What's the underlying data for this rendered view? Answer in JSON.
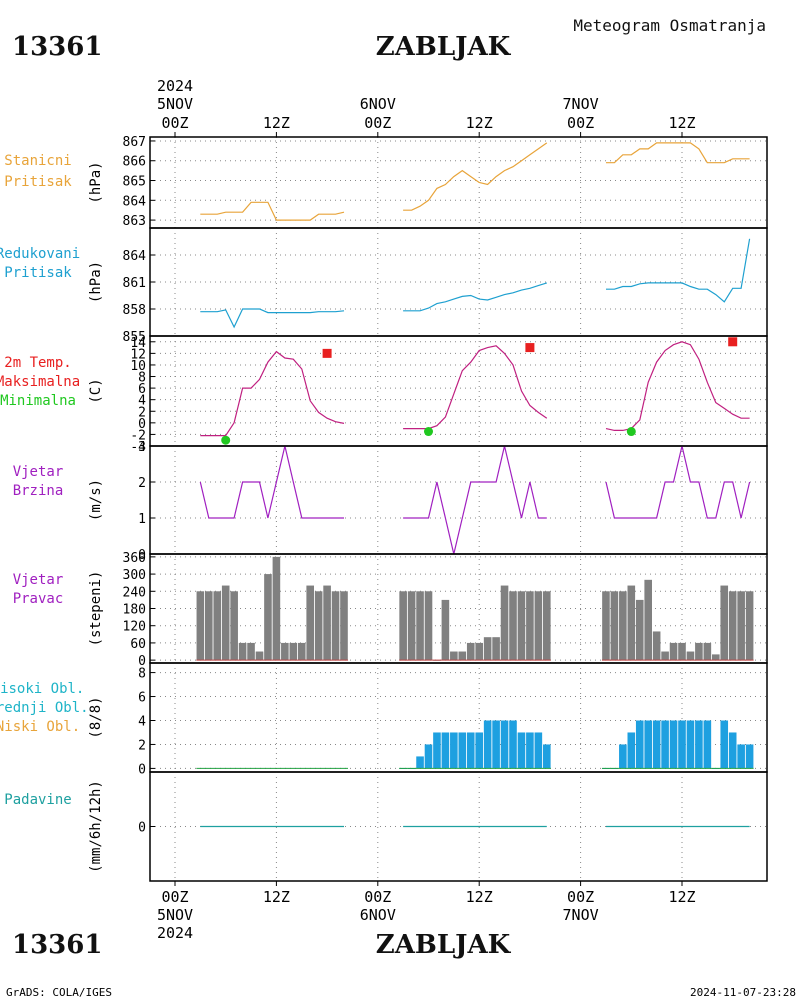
{
  "header": {
    "station_id": "13361",
    "station_name": "ZABLJAK",
    "product": "Meteogram Osmatranja"
  },
  "footer": {
    "source": "GrADS: COLA/IGES",
    "timestamp": "2024-11-07-23:28"
  },
  "colors": {
    "stanicni": "#e8a43a",
    "redukovani": "#1ea0d0",
    "temp_line": "#c02080",
    "tmax": "#e82020",
    "tmin": "#20c820",
    "wind": "#a020c0",
    "direction_bar": "#808080",
    "cloud_bar": "#1ea0e0",
    "precip": "#1ea0a0"
  },
  "time_axis": {
    "top_year": "2024",
    "bottom_year": "2024",
    "ticks": [
      {
        "x": 0,
        "hour": "00Z",
        "date": "5NOV"
      },
      {
        "x": 12,
        "hour": "12Z",
        "date": ""
      },
      {
        "x": 24,
        "hour": "00Z",
        "date": "6NOV"
      },
      {
        "x": 36,
        "hour": "12Z",
        "date": ""
      },
      {
        "x": 48,
        "hour": "00Z",
        "date": "7NOV"
      },
      {
        "x": 60,
        "hour": "12Z",
        "date": ""
      }
    ]
  },
  "chart_data": [
    {
      "type": "line",
      "panel": "stanicni",
      "label": [
        "Stanicni",
        "Pritisak"
      ],
      "ylabel": "(hPa)",
      "ylim": [
        862.6,
        867.2
      ],
      "yticks": [
        863,
        864,
        865,
        866,
        867
      ],
      "series": [
        {
          "x": [
            3,
            4,
            5,
            6,
            7,
            8,
            9,
            10,
            11,
            12,
            13,
            14,
            15,
            16,
            17,
            18,
            19,
            20
          ],
          "y": [
            863.3,
            863.3,
            863.3,
            863.4,
            863.4,
            863.4,
            863.9,
            863.9,
            863.9,
            863.0,
            863.0,
            863.0,
            863.0,
            863.0,
            863.3,
            863.3,
            863.3,
            863.4
          ]
        },
        {
          "x": [
            27,
            28,
            29,
            30,
            31,
            32,
            33,
            34,
            35,
            36,
            37,
            38,
            39,
            40,
            41,
            42,
            43,
            44
          ],
          "y": [
            863.5,
            863.5,
            863.7,
            864.0,
            864.6,
            864.8,
            865.2,
            865.5,
            865.2,
            864.9,
            864.8,
            865.2,
            865.5,
            865.7,
            866.0,
            866.3,
            866.6,
            866.9
          ]
        },
        {
          "x": [
            51,
            52,
            53,
            54,
            55,
            56,
            57,
            58,
            59,
            60,
            61,
            62,
            63,
            64,
            65,
            66,
            67,
            68
          ],
          "y": [
            865.9,
            865.9,
            866.3,
            866.3,
            866.6,
            866.6,
            866.9,
            866.9,
            866.9,
            866.9,
            866.9,
            866.6,
            865.9,
            865.9,
            865.9,
            866.1,
            866.1,
            866.1
          ]
        }
      ]
    },
    {
      "type": "line",
      "panel": "redukovani",
      "label": [
        "Redukovani",
        "Pritisak"
      ],
      "ylabel": "(hPa)",
      "ylim": [
        855,
        867
      ],
      "yticks": [
        855,
        858,
        861,
        864
      ],
      "series": [
        {
          "x": [
            3,
            4,
            5,
            6,
            7,
            8,
            9,
            10,
            11,
            12,
            13,
            14,
            15,
            16,
            17,
            18,
            19,
            20
          ],
          "y": [
            857.7,
            857.7,
            857.7,
            857.9,
            856.0,
            858.0,
            858.0,
            858.0,
            857.6,
            857.6,
            857.6,
            857.6,
            857.6,
            857.6,
            857.7,
            857.7,
            857.7,
            857.8
          ]
        },
        {
          "x": [
            27,
            28,
            29,
            30,
            31,
            32,
            33,
            34,
            35,
            36,
            37,
            38,
            39,
            40,
            41,
            42,
            43,
            44
          ],
          "y": [
            857.8,
            857.8,
            857.8,
            858.1,
            858.6,
            858.8,
            859.1,
            859.4,
            859.5,
            859.1,
            859.0,
            859.3,
            859.6,
            859.8,
            860.1,
            860.3,
            860.6,
            860.9
          ]
        },
        {
          "x": [
            51,
            52,
            53,
            54,
            55,
            56,
            57,
            58,
            59,
            60,
            61,
            62,
            63,
            64,
            65,
            66,
            67,
            68
          ],
          "y": [
            860.2,
            860.2,
            860.5,
            860.5,
            860.8,
            860.9,
            860.9,
            860.9,
            860.9,
            860.9,
            860.5,
            860.2,
            860.2,
            859.6,
            858.8,
            860.3,
            860.3,
            865.8
          ]
        }
      ]
    },
    {
      "type": "line",
      "panel": "temperature",
      "label": [
        "2m Temp.",
        "Maksimalna",
        "Minimalna"
      ],
      "label_colors": [
        "#e82020",
        "#e82020",
        "#20c820"
      ],
      "ylabel": "(C)",
      "ylim": [
        -4,
        15
      ],
      "yticks": [
        -4,
        -2,
        0,
        2,
        4,
        6,
        8,
        10,
        12,
        14
      ],
      "series": [
        {
          "x": [
            3,
            4,
            5,
            6,
            7,
            8,
            9,
            10,
            11,
            12,
            13,
            14,
            15,
            16,
            17,
            18,
            19,
            20
          ],
          "y": [
            -2.2,
            -2.2,
            -2.2,
            -2.2,
            0,
            6.0,
            6.0,
            7.5,
            10.5,
            12.3,
            11.2,
            11.0,
            9.3,
            3.8,
            1.8,
            0.8,
            0.2,
            -0.1
          ]
        },
        {
          "x": [
            27,
            28,
            29,
            30,
            31,
            32,
            33,
            34,
            35,
            36,
            37,
            38,
            39,
            40,
            41,
            42,
            43,
            44
          ],
          "y": [
            -1.0,
            -1.0,
            -1.0,
            -1.0,
            -0.5,
            1.0,
            5.0,
            9.0,
            10.5,
            12.5,
            13.0,
            13.3,
            12.0,
            10.0,
            5.5,
            3.0,
            1.8,
            0.8
          ]
        },
        {
          "x": [
            51,
            52,
            53,
            54,
            55,
            56,
            57,
            58,
            59,
            60,
            61,
            62,
            63,
            64,
            65,
            66,
            67,
            68
          ],
          "y": [
            -1.0,
            -1.3,
            -1.3,
            -1.0,
            0.5,
            7.0,
            10.5,
            12.5,
            13.5,
            14.0,
            13.5,
            11.0,
            7.0,
            3.5,
            2.5,
            1.5,
            0.8,
            0.8
          ]
        }
      ],
      "tmax": [
        {
          "x": 18,
          "y": 12.0
        },
        {
          "x": 42,
          "y": 13.0
        },
        {
          "x": 66,
          "y": 14.0
        }
      ],
      "tmin": [
        {
          "x": 6,
          "y": -3.0
        },
        {
          "x": 30,
          "y": -1.5
        },
        {
          "x": 54,
          "y": -1.5
        }
      ]
    },
    {
      "type": "line",
      "panel": "wind_speed",
      "label": [
        "Vjetar",
        "Brzina"
      ],
      "ylabel": "(m/s)",
      "ylim": [
        0,
        3
      ],
      "yticks": [
        0,
        1,
        2,
        3
      ],
      "series": [
        {
          "x": [
            3,
            4,
            5,
            6,
            7,
            8,
            9,
            10,
            11,
            12,
            13,
            14,
            15,
            16,
            17,
            18,
            19,
            20
          ],
          "y": [
            2,
            1,
            1,
            1,
            1,
            2,
            2,
            2,
            1,
            2,
            3,
            2,
            1,
            1,
            1,
            1,
            1,
            1
          ]
        },
        {
          "x": [
            27,
            28,
            29,
            30,
            31,
            32,
            33,
            34,
            35,
            36,
            37,
            38,
            39,
            40,
            41,
            42,
            43,
            44
          ],
          "y": [
            1,
            1,
            1,
            1,
            2,
            1,
            0,
            1,
            2,
            2,
            2,
            2,
            3,
            2,
            1,
            2,
            1,
            1
          ]
        },
        {
          "x": [
            51,
            52,
            53,
            54,
            55,
            56,
            57,
            58,
            59,
            60,
            61,
            62,
            63,
            64,
            65,
            66,
            67,
            68
          ],
          "y": [
            2,
            1,
            1,
            1,
            1,
            1,
            1,
            2,
            2,
            3,
            2,
            2,
            1,
            1,
            2,
            2,
            1,
            2
          ]
        }
      ]
    },
    {
      "type": "bar",
      "panel": "wind_direction",
      "label": [
        "Vjetar",
        "Pravac"
      ],
      "ylabel": "(stepeni)",
      "ylim": [
        -10,
        370
      ],
      "yticks": [
        0,
        60,
        120,
        180,
        240,
        300,
        360
      ],
      "x": [
        3,
        4,
        5,
        6,
        7,
        8,
        9,
        10,
        11,
        12,
        13,
        14,
        15,
        16,
        17,
        18,
        19,
        20,
        27,
        28,
        29,
        30,
        31,
        32,
        33,
        34,
        35,
        36,
        37,
        38,
        39,
        40,
        41,
        42,
        43,
        44,
        51,
        52,
        53,
        54,
        55,
        56,
        57,
        58,
        59,
        60,
        61,
        62,
        63,
        64,
        65,
        66,
        67,
        68
      ],
      "values": [
        240,
        240,
        240,
        260,
        240,
        60,
        60,
        30,
        300,
        360,
        60,
        60,
        60,
        260,
        240,
        260,
        240,
        240,
        240,
        240,
        240,
        240,
        0,
        210,
        30,
        30,
        60,
        60,
        80,
        80,
        260,
        240,
        240,
        240,
        240,
        240,
        240,
        240,
        240,
        260,
        210,
        280,
        100,
        30,
        60,
        60,
        30,
        60,
        60,
        20,
        260,
        240,
        240,
        240
      ]
    },
    {
      "type": "bar",
      "panel": "clouds",
      "label": [
        "Visoki Obl.",
        "Srednji Obl.",
        "Niski Obl."
      ],
      "label_colors": [
        "#1eb4c8",
        "#1eb4c8",
        "#e8a43a"
      ],
      "ylabel": "(8/8)",
      "ylim": [
        -0.3,
        8.8
      ],
      "yticks": [
        0,
        2,
        4,
        6,
        8
      ],
      "x": [
        27,
        28,
        29,
        30,
        31,
        32,
        33,
        34,
        35,
        36,
        37,
        38,
        39,
        40,
        41,
        42,
        43,
        44,
        51,
        52,
        53,
        54,
        55,
        56,
        57,
        58,
        59,
        60,
        61,
        62,
        63,
        64,
        65,
        66,
        67,
        68
      ],
      "values": [
        0,
        0,
        1,
        2,
        3,
        3,
        3,
        3,
        3,
        3,
        4,
        4,
        4,
        4,
        3,
        3,
        3,
        2,
        0,
        0,
        2,
        3,
        4,
        4,
        4,
        4,
        4,
        4,
        4,
        4,
        4,
        0,
        4,
        3,
        2,
        2
      ]
    },
    {
      "type": "line",
      "panel": "precipitation",
      "label": [
        "Padavine"
      ],
      "ylabel": "(mm/6h/12h)",
      "ylim": [
        -2,
        2
      ],
      "yticks": [
        0
      ],
      "series": [
        {
          "x": [
            3,
            20
          ],
          "y": [
            0,
            0
          ]
        },
        {
          "x": [
            27,
            44
          ],
          "y": [
            0,
            0
          ]
        },
        {
          "x": [
            51,
            68
          ],
          "y": [
            0,
            0
          ]
        }
      ]
    }
  ]
}
